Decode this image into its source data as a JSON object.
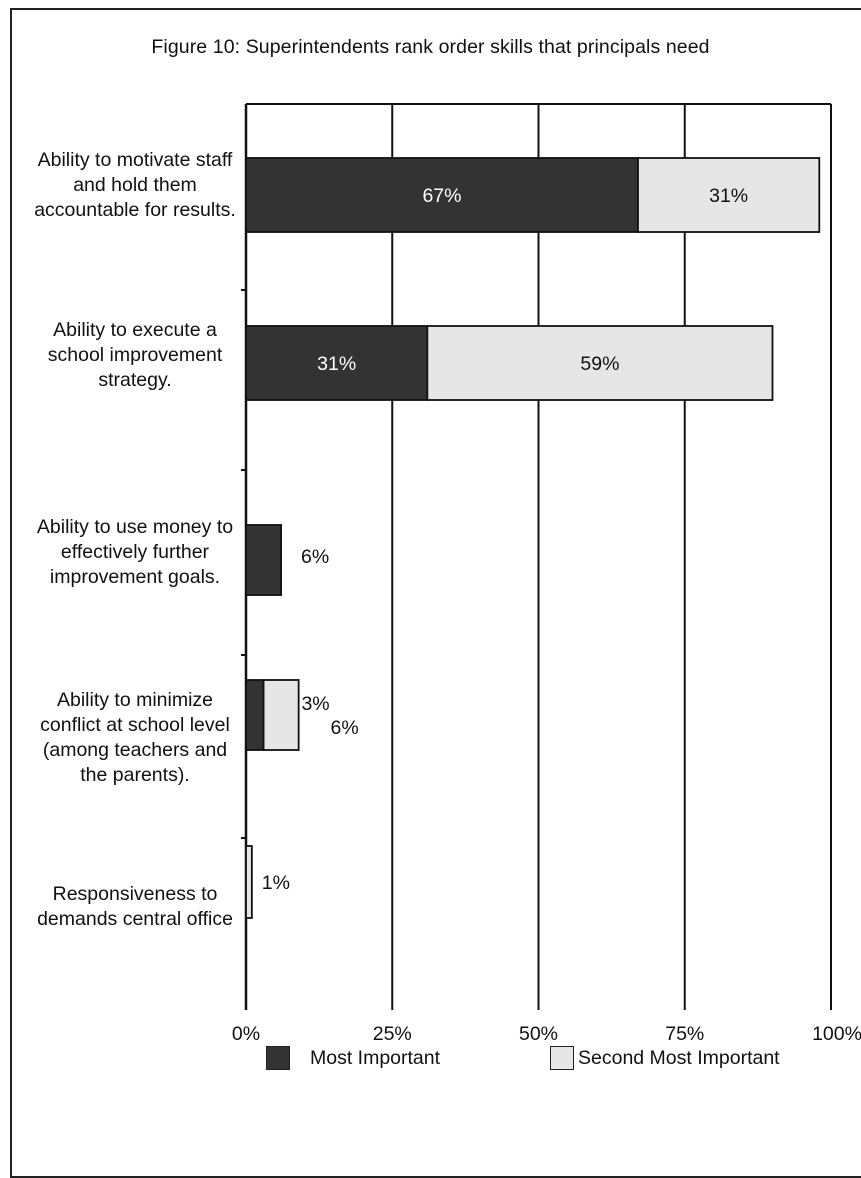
{
  "chart_data": {
    "type": "bar",
    "orientation": "horizontal",
    "stacked": true,
    "title": "Figure 10: Superintendents rank order skills that principals need",
    "categories": [
      "Ability to motivate staff and hold them accountable for results.",
      "Ability to execute a school improvement strategy.",
      "Ability to use money to effectively further improvement goals.",
      "Ability to minimize conflict at school level (among teachers and the parents).",
      "Responsiveness to demands central office"
    ],
    "series": [
      {
        "name": "Most Important",
        "color": "#333333",
        "values": [
          67,
          31,
          6,
          3,
          0
        ],
        "labels": [
          "67%",
          "31%",
          "6%",
          "3%",
          ""
        ]
      },
      {
        "name": "Second Most Important",
        "color": "#e6e6e6",
        "values": [
          31,
          59,
          0,
          6,
          1
        ],
        "labels": [
          "31%",
          "59%",
          "",
          "6%",
          "1%"
        ]
      }
    ],
    "xlim": [
      0,
      100
    ],
    "xticks": [
      "0%",
      "25%",
      "50%",
      "75%",
      "100%"
    ],
    "grid": true,
    "legend": "bottom"
  }
}
